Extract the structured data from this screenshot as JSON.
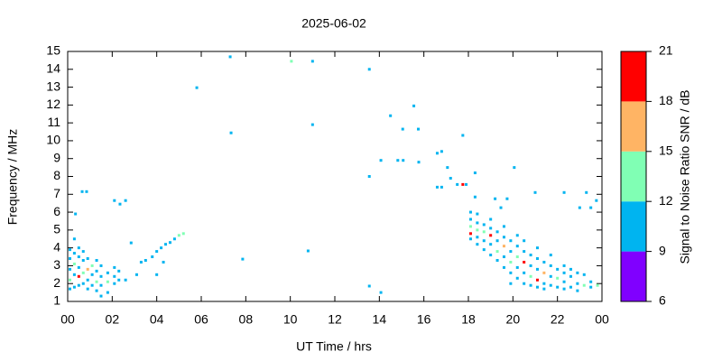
{
  "chart_data": {
    "type": "scatter",
    "title": "2025-06-02",
    "x_label": "UT Time / hrs",
    "y_label": "Frequency / MHz",
    "colorbar_label": "Signal to Noise Ratio SNR / dB",
    "xlim": [
      0,
      24
    ],
    "xticks": [
      {
        "value": 0,
        "label": "00"
      },
      {
        "value": 2,
        "label": "02"
      },
      {
        "value": 4,
        "label": "04"
      },
      {
        "value": 6,
        "label": "06"
      },
      {
        "value": 8,
        "label": "08"
      },
      10,
      12,
      14,
      16,
      18,
      20,
      22,
      {
        "value": 24,
        "label": "00"
      }
    ],
    "ylim": [
      1,
      15
    ],
    "yticks": [
      1,
      2,
      3,
      4,
      5,
      6,
      7,
      8,
      9,
      10,
      11,
      12,
      13,
      14,
      15
    ],
    "colorbar": {
      "lim": [
        6,
        21
      ],
      "ticks": [
        6,
        9,
        12,
        15,
        18,
        21
      ],
      "colors": [
        "#8000ff",
        "#00b4f0",
        "#80ffb4",
        "#ffb464",
        "#ff0000"
      ]
    },
    "points": [
      [
        7.3,
        14.7,
        10
      ],
      [
        10.05,
        14.45,
        13
      ],
      [
        11.0,
        14.45,
        10
      ],
      [
        13.55,
        14.0,
        10
      ],
      [
        5.8,
        12.97,
        10
      ],
      [
        7.34,
        10.44,
        10
      ],
      [
        11.0,
        10.9,
        10
      ],
      [
        14.5,
        11.4,
        10
      ],
      [
        15.55,
        11.95,
        10
      ],
      [
        15.05,
        10.65,
        10
      ],
      [
        15.75,
        10.65,
        10
      ],
      [
        17.75,
        10.3,
        10
      ],
      [
        14.07,
        8.9,
        10
      ],
      [
        14.83,
        8.9,
        10
      ],
      [
        15.07,
        8.9,
        10
      ],
      [
        15.77,
        8.8,
        10
      ],
      [
        16.6,
        9.3,
        10
      ],
      [
        16.8,
        9.4,
        10
      ],
      [
        17.06,
        8.5,
        10
      ],
      [
        17.2,
        7.9,
        10
      ],
      [
        13.55,
        8.0,
        10
      ],
      [
        18.3,
        8.2,
        10
      ],
      [
        16.6,
        7.4,
        10
      ],
      [
        16.8,
        7.4,
        10
      ],
      [
        17.5,
        7.55,
        10
      ],
      [
        17.75,
        7.55,
        19
      ],
      [
        17.9,
        7.55,
        10
      ],
      [
        20.06,
        8.5,
        10
      ],
      [
        21.0,
        7.1,
        10
      ],
      [
        22.3,
        7.1,
        10
      ],
      [
        23.3,
        7.1,
        10
      ],
      [
        0.65,
        7.15,
        10
      ],
      [
        0.85,
        7.15,
        10
      ],
      [
        2.1,
        6.65,
        10
      ],
      [
        2.35,
        6.45,
        10
      ],
      [
        2.6,
        6.65,
        10
      ],
      [
        0.35,
        5.9,
        10
      ],
      [
        2.85,
        4.28,
        10
      ],
      [
        7.86,
        3.37,
        10
      ],
      [
        10.8,
        3.83,
        10
      ],
      [
        13.55,
        1.86,
        10
      ],
      [
        14.07,
        1.5,
        10
      ],
      [
        23.0,
        6.25,
        10
      ],
      [
        23.5,
        6.25,
        10
      ],
      [
        23.75,
        6.65,
        10
      ],
      [
        19.74,
        6.75,
        10
      ],
      [
        19.2,
        6.75,
        10
      ],
      [
        19.46,
        6.25,
        10
      ],
      [
        18.3,
        6.85,
        10
      ],
      [
        0.1,
        1.7,
        10
      ],
      [
        0.1,
        2.2,
        13
      ],
      [
        0.1,
        2.8,
        10
      ],
      [
        0.1,
        3.4,
        10
      ],
      [
        0.1,
        3.9,
        10
      ],
      [
        0.3,
        1.8,
        10
      ],
      [
        0.3,
        2.5,
        10
      ],
      [
        0.3,
        3.1,
        13
      ],
      [
        0.3,
        3.7,
        10
      ],
      [
        0.3,
        4.5,
        10
      ],
      [
        0.5,
        1.9,
        10
      ],
      [
        0.5,
        2.4,
        19
      ],
      [
        0.5,
        2.9,
        10
      ],
      [
        0.5,
        3.5,
        10
      ],
      [
        0.5,
        4.0,
        10
      ],
      [
        0.7,
        2.0,
        10
      ],
      [
        0.7,
        2.6,
        13
      ],
      [
        0.7,
        3.3,
        10
      ],
      [
        0.7,
        3.8,
        10
      ],
      [
        0.9,
        1.7,
        10
      ],
      [
        0.9,
        2.2,
        10
      ],
      [
        0.9,
        2.8,
        16
      ],
      [
        0.9,
        3.4,
        10
      ],
      [
        1.1,
        1.9,
        10
      ],
      [
        1.1,
        2.5,
        10
      ],
      [
        1.1,
        3.0,
        13
      ],
      [
        1.3,
        1.6,
        10
      ],
      [
        1.3,
        2.1,
        13
      ],
      [
        1.3,
        2.7,
        10
      ],
      [
        1.3,
        3.3,
        10
      ],
      [
        1.5,
        1.3,
        10
      ],
      [
        1.5,
        1.9,
        10
      ],
      [
        1.5,
        2.4,
        10
      ],
      [
        1.5,
        3.0,
        10
      ],
      [
        1.8,
        1.5,
        10
      ],
      [
        1.8,
        2.1,
        13
      ],
      [
        1.8,
        2.6,
        10
      ],
      [
        2.1,
        2.0,
        10
      ],
      [
        2.1,
        2.4,
        10
      ],
      [
        2.1,
        2.9,
        10
      ],
      [
        2.3,
        2.2,
        10
      ],
      [
        2.3,
        2.7,
        10
      ],
      [
        2.6,
        2.2,
        10
      ],
      [
        3.1,
        2.5,
        10
      ],
      [
        3.3,
        3.2,
        10
      ],
      [
        3.5,
        3.3,
        10
      ],
      [
        3.8,
        3.5,
        10
      ],
      [
        4.0,
        3.8,
        10
      ],
      [
        4.2,
        4.0,
        10
      ],
      [
        4.4,
        4.2,
        10
      ],
      [
        4.6,
        4.3,
        10
      ],
      [
        4.8,
        4.5,
        10
      ],
      [
        5.0,
        4.7,
        13
      ],
      [
        5.2,
        4.8,
        13
      ],
      [
        4.0,
        2.5,
        10
      ],
      [
        4.3,
        3.2,
        10
      ],
      [
        18.1,
        4.5,
        10
      ],
      [
        18.1,
        4.8,
        19
      ],
      [
        18.1,
        5.2,
        13
      ],
      [
        18.1,
        5.6,
        10
      ],
      [
        18.1,
        6.0,
        10
      ],
      [
        18.4,
        4.2,
        10
      ],
      [
        18.4,
        4.6,
        10
      ],
      [
        18.4,
        5.0,
        13
      ],
      [
        18.4,
        5.4,
        10
      ],
      [
        18.4,
        5.9,
        10
      ],
      [
        18.7,
        3.9,
        10
      ],
      [
        18.7,
        4.4,
        10
      ],
      [
        18.7,
        4.9,
        13
      ],
      [
        18.7,
        5.3,
        10
      ],
      [
        19.0,
        3.6,
        10
      ],
      [
        19.0,
        4.2,
        10
      ],
      [
        19.0,
        4.7,
        19
      ],
      [
        19.0,
        5.1,
        10
      ],
      [
        19.0,
        5.6,
        10
      ],
      [
        19.3,
        3.3,
        10
      ],
      [
        19.3,
        3.8,
        13
      ],
      [
        19.3,
        4.4,
        10
      ],
      [
        19.3,
        4.9,
        10
      ],
      [
        19.6,
        2.9,
        10
      ],
      [
        19.6,
        3.5,
        10
      ],
      [
        19.6,
        4.1,
        16
      ],
      [
        19.6,
        4.6,
        10
      ],
      [
        19.6,
        5.2,
        10
      ],
      [
        19.9,
        2.0,
        10
      ],
      [
        19.9,
        2.6,
        10
      ],
      [
        19.9,
        3.2,
        13
      ],
      [
        19.9,
        3.8,
        10
      ],
      [
        19.9,
        4.4,
        10
      ],
      [
        20.2,
        2.3,
        10
      ],
      [
        20.2,
        2.9,
        10
      ],
      [
        20.2,
        3.5,
        13
      ],
      [
        20.2,
        4.1,
        10
      ],
      [
        20.2,
        4.7,
        10
      ],
      [
        20.5,
        2.0,
        10
      ],
      [
        20.5,
        2.6,
        10
      ],
      [
        20.5,
        3.2,
        19
      ],
      [
        20.5,
        3.8,
        10
      ],
      [
        20.5,
        4.4,
        10
      ],
      [
        20.8,
        1.9,
        10
      ],
      [
        20.8,
        2.4,
        13
      ],
      [
        20.8,
        3.0,
        10
      ],
      [
        20.8,
        3.6,
        10
      ],
      [
        21.1,
        1.8,
        10
      ],
      [
        21.1,
        2.2,
        19
      ],
      [
        21.1,
        2.8,
        10
      ],
      [
        21.1,
        3.4,
        10
      ],
      [
        21.1,
        4.0,
        10
      ],
      [
        21.4,
        1.7,
        10
      ],
      [
        21.4,
        2.0,
        10
      ],
      [
        21.4,
        2.6,
        16
      ],
      [
        21.4,
        3.2,
        10
      ],
      [
        21.7,
        1.9,
        10
      ],
      [
        21.7,
        2.4,
        10
      ],
      [
        21.7,
        3.0,
        10
      ],
      [
        21.7,
        3.6,
        10
      ],
      [
        22.0,
        1.8,
        10
      ],
      [
        22.0,
        2.3,
        13
      ],
      [
        22.0,
        2.8,
        10
      ],
      [
        22.3,
        1.7,
        10
      ],
      [
        22.3,
        2.1,
        10
      ],
      [
        22.3,
        2.6,
        10
      ],
      [
        22.3,
        3.0,
        10
      ],
      [
        22.6,
        1.8,
        10
      ],
      [
        22.6,
        2.4,
        10
      ],
      [
        22.6,
        2.8,
        10
      ],
      [
        22.9,
        1.6,
        10
      ],
      [
        22.9,
        2.0,
        10
      ],
      [
        22.9,
        2.6,
        10
      ],
      [
        23.2,
        1.9,
        13
      ],
      [
        23.2,
        2.5,
        10
      ],
      [
        23.5,
        1.8,
        10
      ],
      [
        23.5,
        2.1,
        10
      ],
      [
        23.8,
        1.9,
        13
      ]
    ]
  }
}
